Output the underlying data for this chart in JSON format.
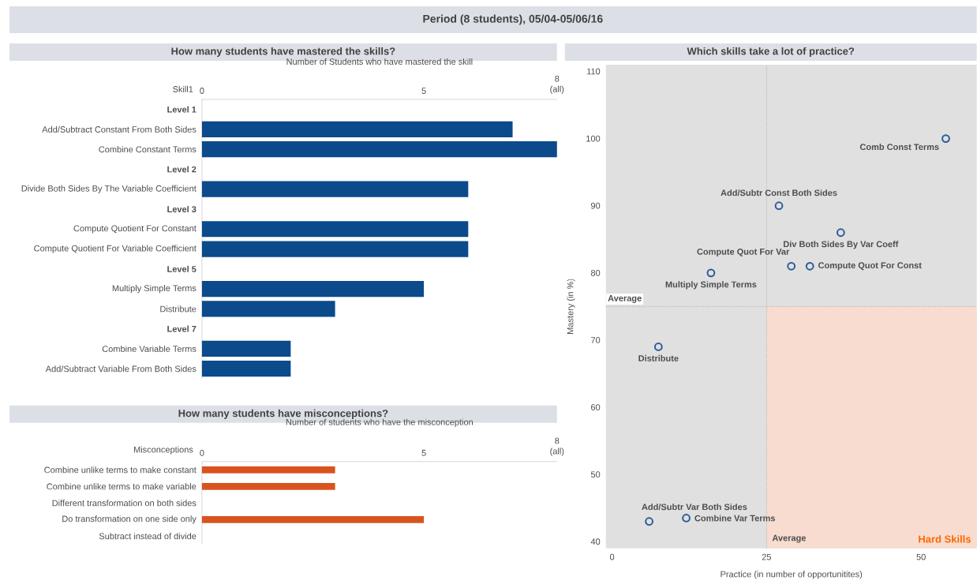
{
  "chart_data": [
    {
      "type": "bar",
      "orientation": "horizontal",
      "title": "How many students have mastered the skills?",
      "xlabel": "Number of Students who have mastered the skill",
      "ylabel": "Skill1",
      "categories": [
        "Level 1",
        "Add/Subtract Constant From Both Sides",
        "Combine Constant Terms",
        "Level 2",
        "Divide Both Sides By The Variable Coefficient",
        "Level 3",
        "Compute Quotient For Constant",
        "Compute Quotient For Variable Coefficient",
        "Level 5",
        "Multiply Simple Terms",
        "Distribute",
        "Level 7",
        "Combine Variable Terms",
        "Add/Subtract Variable From Both Sides"
      ],
      "values": [
        null,
        7,
        8,
        null,
        6,
        null,
        6,
        6,
        null,
        5,
        3,
        null,
        2,
        2
      ],
      "color": "#0b4a8b",
      "xlim": [
        0,
        8
      ],
      "xticks": [
        0,
        5,
        {
          "value": 8,
          "label": "8 (all)"
        }
      ],
      "annotations": [
        "Period (8 students), 05/04-05/06/16"
      ]
    },
    {
      "type": "bar",
      "orientation": "horizontal",
      "title": "How many students have misconceptions?",
      "xlabel": "Number of students who have the misconception",
      "ylabel": "Misconceptions",
      "categories": [
        "Combine unlike terms to make constant",
        "Combine unlike terms to make variable",
        "Different transformation on both sides",
        "Do transformation on one side only",
        "Subtract instead of divide"
      ],
      "values": [
        3,
        3,
        0,
        5,
        0
      ],
      "color": "#d9531e",
      "xlim": [
        0,
        8
      ],
      "xticks": [
        0,
        5,
        {
          "value": 8,
          "label": "8 (all)"
        }
      ]
    },
    {
      "type": "scatter",
      "title": "Which skills take a lot of practice?",
      "xlabel": "Practice (in number of opportunitites)",
      "ylabel": "Mastery (in %)",
      "x": [
        54,
        27,
        37,
        29,
        32,
        16,
        7.5,
        6,
        12
      ],
      "values": [
        100,
        90,
        86,
        81,
        81,
        80,
        69,
        43,
        43.5
      ],
      "color": "#2a5c9a",
      "marker": "circle",
      "xlim": [
        -1,
        59
      ],
      "ylim": [
        39,
        111
      ],
      "xticks": [
        0,
        25,
        50
      ],
      "yticks": [
        40,
        50,
        60,
        70,
        80,
        90,
        100,
        110
      ],
      "ref_lines": [
        {
          "axis": "x",
          "value": 25,
          "label": "Average"
        },
        {
          "axis": "y",
          "value": 75,
          "label": "Average"
        }
      ],
      "bands": [
        {
          "axis": "x",
          "from": 25,
          "to": 59,
          "label": "Hard Skills",
          "color": "#f7dccf"
        }
      ],
      "annotations": [
        {
          "text": "Comb Const Terms",
          "x": 54,
          "y": 100
        },
        {
          "text": "Add/Subtr Const Both Sides",
          "x": 27,
          "y": 90
        },
        {
          "text": "Div Both Sides By Var Coeff",
          "x": 37,
          "y": 86
        },
        {
          "text": "Compute Quot For Var",
          "x": 29,
          "y": 81
        },
        {
          "text": "Compute Quot For Const",
          "x": 32,
          "y": 81
        },
        {
          "text": "Multiply Simple Terms",
          "x": 16,
          "y": 80
        },
        {
          "text": "Distribute",
          "x": 7.5,
          "y": 69
        },
        {
          "text": "Add/Subtr Var Both Sides",
          "x": 6,
          "y": 43
        },
        {
          "text": "Combine Var Terms",
          "x": 12,
          "y": 43.5
        }
      ]
    }
  ]
}
